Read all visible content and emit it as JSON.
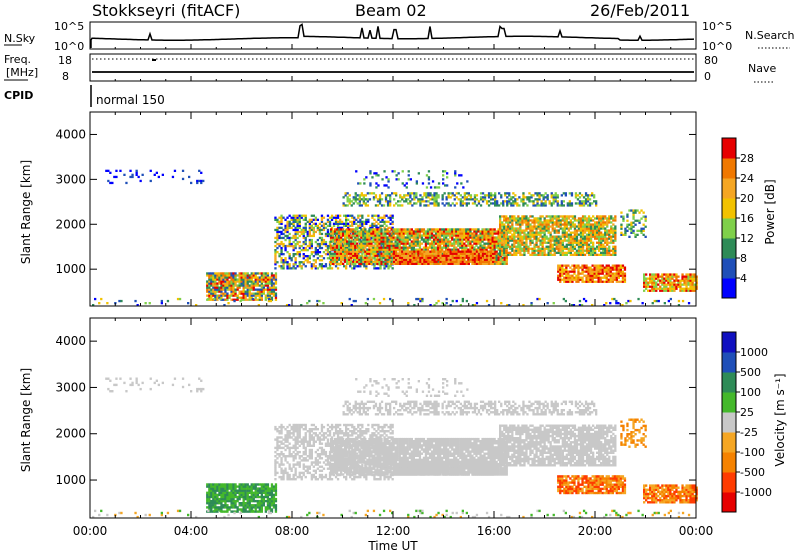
{
  "header": {
    "station": "Stokkseyri (fitACF)",
    "beam": "Beam 02",
    "date": "26/Feb/2011"
  },
  "side_labels": {
    "nsky": "N.Sky",
    "freq_line1": "Freq.",
    "freq_line2": "[MHz]",
    "cpid": "CPID",
    "nsearch": "N.Search",
    "nave": "Nave"
  },
  "cpid_text": "normal 150",
  "colors": {
    "noise_line": "#000000",
    "power_scale": [
      "#0000ff",
      "#1f4fb8",
      "#2e8b57",
      "#7fd04a",
      "#f2c200",
      "#f5a623",
      "#f07800",
      "#e60000"
    ],
    "velocity_scale": [
      "#e60000",
      "#ff3b00",
      "#f58200",
      "#f5a623",
      "#c8c8c8",
      "#44b82b",
      "#2e8b57",
      "#1f4fb8",
      "#1010c0"
    ]
  },
  "chart_data": [
    {
      "type": "line",
      "panel": "noise",
      "left_axis_label": "N.Sky",
      "left_ticks": [
        "10^5",
        "10^0"
      ],
      "right_axis_label": "N.Search",
      "right_ticks": [
        "10^5",
        "10^0"
      ]
    },
    {
      "type": "line",
      "panel": "frequency-nave",
      "left_axis_label": "Freq. [MHz]",
      "left_ticks": [
        "18",
        "8"
      ],
      "right_axis_label": "Nave",
      "right_ticks": [
        "80",
        "0"
      ]
    },
    {
      "type": "heatmap",
      "panel": "power",
      "ylabel": "Slant Range [km]",
      "ylim": [
        180,
        4500
      ],
      "y_ticks": [
        1000,
        2000,
        3000,
        4000
      ],
      "xlim_hours": [
        0,
        24
      ],
      "colorbar_label": "Power [dB]",
      "colorbar_ticks": [
        4,
        8,
        12,
        16,
        20,
        24,
        28
      ]
    },
    {
      "type": "heatmap",
      "panel": "velocity",
      "ylabel": "Slant Range [km]",
      "ylim": [
        180,
        4500
      ],
      "y_ticks": [
        1000,
        2000,
        3000,
        4000
      ],
      "xlim_hours": [
        0,
        24
      ],
      "colorbar_label": "Velocity [m s⁻¹]",
      "colorbar_ticks": [
        -1000,
        -500,
        -100,
        -25,
        25,
        100,
        500,
        1000
      ],
      "x_tick_labels": [
        "00:00",
        "04:00",
        "08:00",
        "12:00",
        "16:00",
        "20:00",
        "00:00"
      ],
      "xlabel": "Time UT"
    }
  ]
}
